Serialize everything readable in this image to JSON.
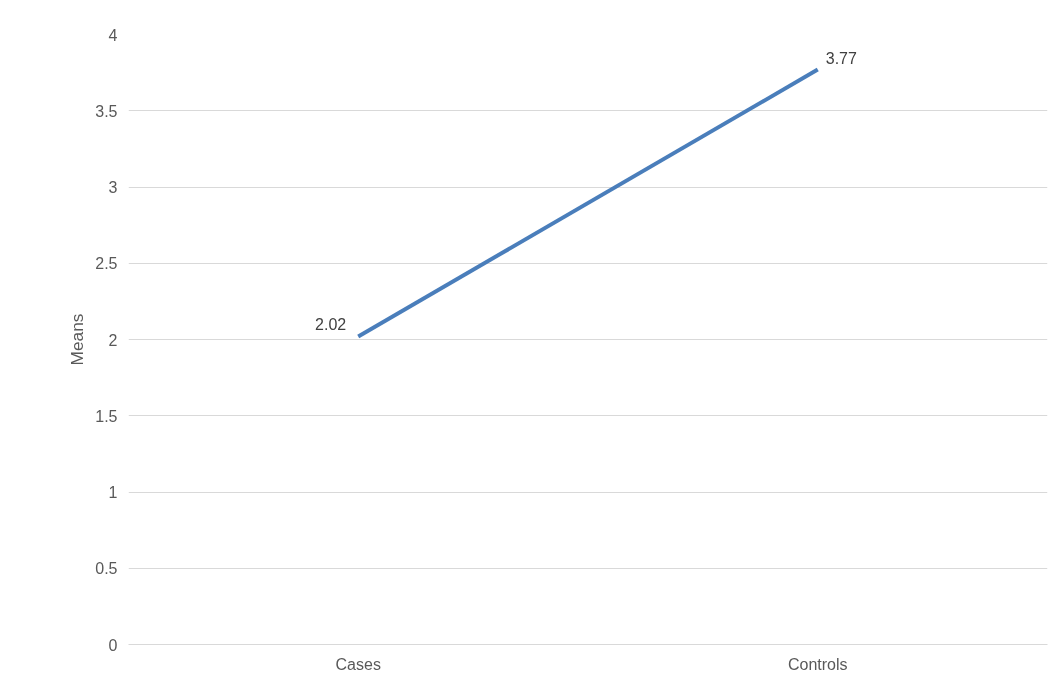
{
  "chart_data": {
    "type": "line",
    "ylabel": "Means",
    "categories": [
      "Cases",
      "Controls"
    ],
    "series": [
      {
        "color": "#4a7ebb",
        "values": [
          2.02,
          3.77
        ]
      }
    ],
    "ylim": [
      0,
      4
    ],
    "yticks": [
      0,
      0.5,
      1,
      1.5,
      2,
      2.5,
      3,
      3.5,
      4
    ],
    "grid": "y",
    "marker": "none",
    "line_style": "solid",
    "data_labels": true
  }
}
